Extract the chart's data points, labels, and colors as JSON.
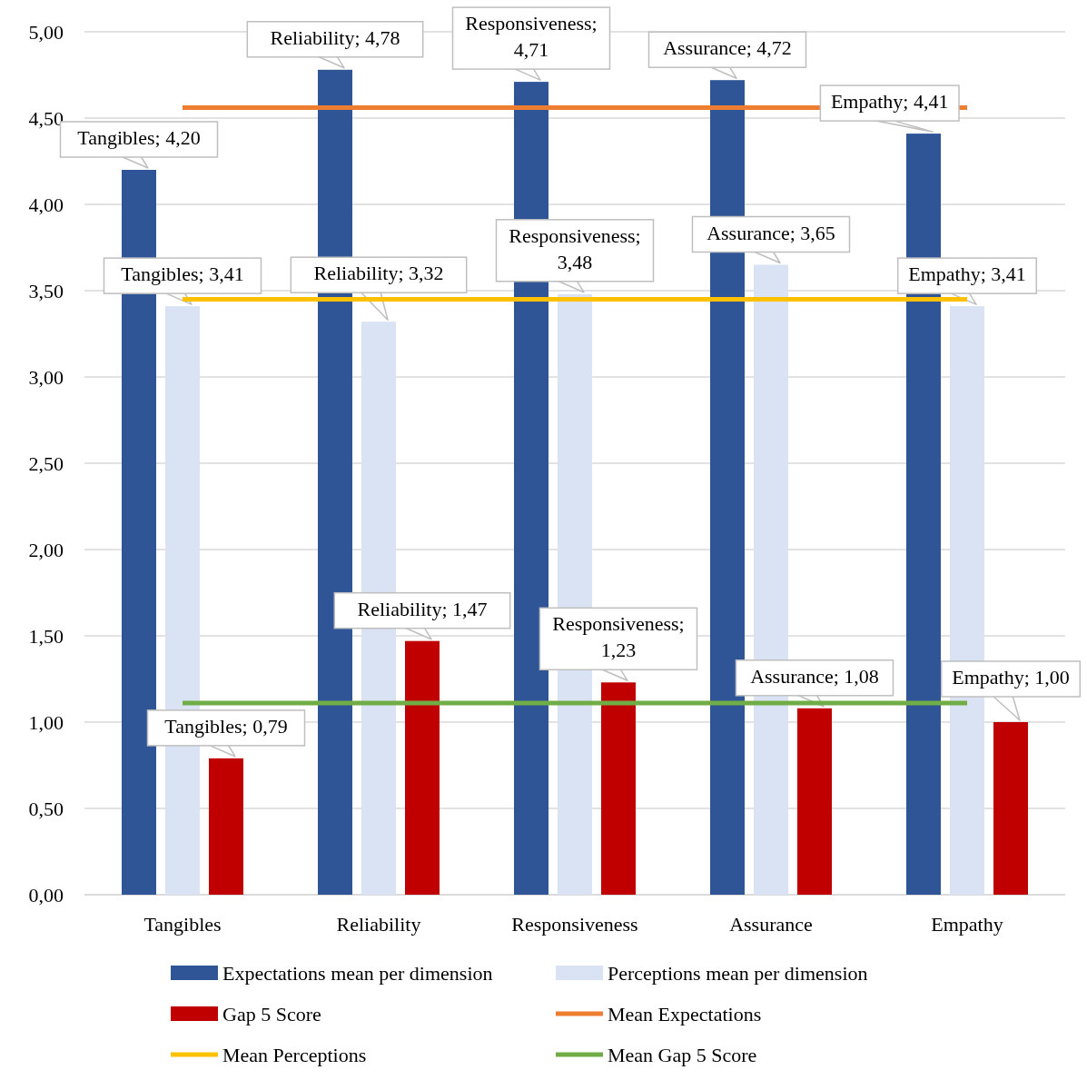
{
  "chart_data": {
    "type": "bar",
    "categories": [
      "Tangibles",
      "Reliability",
      "Responsiveness",
      "Assurance",
      "Empathy"
    ],
    "series": [
      {
        "name": "Expectations mean per dimension",
        "color": "#2f5597",
        "values": [
          4.2,
          4.78,
          4.71,
          4.72,
          4.41
        ],
        "value_labels": [
          "Tangibles; 4,20",
          "Reliability; 4,78",
          "Responsiveness; 4,71",
          "Assurance; 4,72",
          "Empathy; 4,41"
        ]
      },
      {
        "name": "Perceptions mean per dimension",
        "color": "#dae3f3",
        "values": [
          3.41,
          3.32,
          3.48,
          3.65,
          3.41
        ],
        "value_labels": [
          "Tangibles; 3,41",
          "Reliability; 3,32",
          "Responsiveness; 3,48",
          "Assurance; 3,65",
          "Empathy; 3,41"
        ]
      },
      {
        "name": "Gap 5 Score",
        "color": "#c00000",
        "values": [
          0.79,
          1.47,
          1.23,
          1.08,
          1.0
        ],
        "value_labels": [
          "Tangibles; 0,79",
          "Reliability; 1,47",
          "Responsiveness; 1,23",
          "Assurance; 1,08",
          "Empathy; 1,00"
        ]
      },
      {
        "name": "Mean Expectations",
        "type": "line",
        "color": "#ed7d31",
        "values": [
          4.56,
          4.56,
          4.56,
          4.56,
          4.56
        ]
      },
      {
        "name": "Mean Perceptions",
        "type": "line",
        "color": "#ffc000",
        "values": [
          3.45,
          3.45,
          3.45,
          3.45,
          3.45
        ]
      },
      {
        "name": "Mean Gap 5 Score",
        "type": "line",
        "color": "#70ad47",
        "values": [
          1.11,
          1.11,
          1.11,
          1.11,
          1.11
        ]
      }
    ],
    "ylim": [
      0,
      5
    ],
    "yticks": [
      {
        "value": 0,
        "label": "0,00"
      },
      {
        "value": 0.5,
        "label": "0,50"
      },
      {
        "value": 1,
        "label": "1,00"
      },
      {
        "value": 1.5,
        "label": "1,50"
      },
      {
        "value": 2,
        "label": "2,00"
      },
      {
        "value": 2.5,
        "label": "2,50"
      },
      {
        "value": 3,
        "label": "3,00"
      },
      {
        "value": 3.5,
        "label": "3,50"
      },
      {
        "value": 4,
        "label": "4,00"
      },
      {
        "value": 4.5,
        "label": "4,50"
      },
      {
        "value": 5,
        "label": "5,00"
      }
    ],
    "grid": "y",
    "legend": "bottom"
  }
}
